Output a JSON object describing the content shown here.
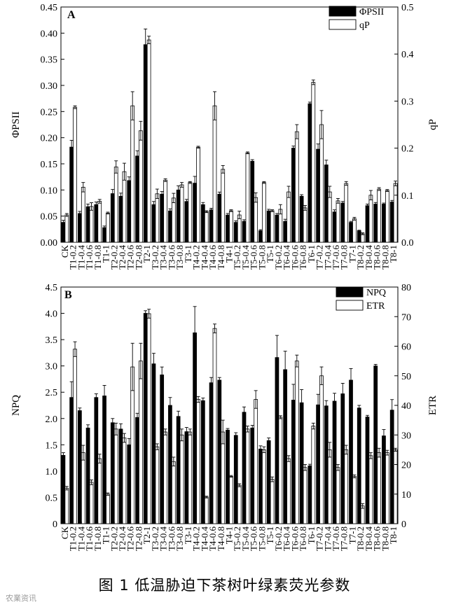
{
  "caption": "图 1   低温胁迫下茶树叶绿素荧光参数",
  "watermark": "农業资讯",
  "chart_data": [
    {
      "type": "bar",
      "panel": "A",
      "categories": [
        "CK",
        "T1-0.2",
        "T1-0.4",
        "T1-0.6",
        "T1-0.8",
        "T1-1",
        "T2-0.2",
        "T2-0.4",
        "T2-0.6",
        "T2-0.8",
        "T2-1",
        "T3-0.2",
        "T3-0.4",
        "T3-0.6",
        "T3-0.8",
        "T3-1",
        "T4-0.2",
        "T4-0.4",
        "T4-0.6",
        "T4-0.8",
        "T4-1",
        "T5-0.2",
        "T5-0.4",
        "T5-0.6",
        "T5-0.8",
        "T5-1",
        "T6-0.2",
        "T6-0.4",
        "T6-0.6",
        "T6-0.8",
        "T6-1",
        "T7-0.2",
        "T7-0.4",
        "T7-0.6",
        "T7-0.8",
        "T7-1",
        "T8-0.2",
        "T8-0.4",
        "T8-0.6",
        "T8-0.8",
        "T8-1"
      ],
      "y_left": {
        "label": "ΦPSII",
        "lim": [
          0,
          0.45
        ],
        "ticks": [
          "0.00",
          "0.05",
          "0.10",
          "0.15",
          "0.20",
          "0.25",
          "0.30",
          "0.35",
          "0.40",
          "0.45"
        ]
      },
      "y_right": {
        "label": "qP",
        "lim": [
          0,
          0.5
        ],
        "ticks": [
          "0.0",
          "0.1",
          "0.2",
          "0.3",
          "0.4",
          "0.5"
        ]
      },
      "legend": [
        "ΦPSII",
        "qP"
      ],
      "legend_position": "top-right",
      "series": [
        {
          "name": "ΦPSII",
          "axis": "left",
          "fill": "#000000",
          "values": [
            0.038,
            0.182,
            0.055,
            0.068,
            0.072,
            0.028,
            0.093,
            0.088,
            0.118,
            0.165,
            0.378,
            0.072,
            0.092,
            0.06,
            0.1,
            0.078,
            0.113,
            0.072,
            0.062,
            0.092,
            0.052,
            0.038,
            0.04,
            0.155,
            0.022,
            0.06,
            0.052,
            0.04,
            0.18,
            0.088,
            0.265,
            0.178,
            0.148,
            0.058,
            0.075,
            0.038,
            0.022,
            0.07,
            0.073,
            0.073,
            0.077
          ],
          "errors": [
            0.004,
            0.013,
            0.004,
            0.005,
            0.005,
            0.003,
            0.008,
            0.006,
            0.007,
            0.01,
            0.03,
            0.006,
            0.005,
            0.004,
            0.008,
            0.004,
            0.013,
            0.004,
            0.003,
            0.004,
            0.003,
            0.003,
            0.003,
            0.003,
            0.002,
            0.003,
            0.003,
            0.004,
            0.004,
            0.003,
            0.003,
            0.01,
            0.009,
            0.004,
            0.003,
            0.002,
            0.001,
            0.003,
            0.003,
            0.002,
            0.003
          ]
        },
        {
          "name": "qP",
          "axis": "right",
          "fill": "#ffffff",
          "values": [
            0.058,
            0.287,
            0.117,
            0.076,
            0.087,
            0.062,
            0.16,
            0.15,
            0.29,
            0.237,
            0.43,
            0.103,
            0.132,
            0.094,
            0.122,
            0.127,
            0.202,
            0.065,
            0.29,
            0.155,
            0.067,
            0.058,
            0.19,
            0.095,
            0.127,
            0.067,
            0.07,
            0.107,
            0.235,
            0.073,
            0.34,
            0.25,
            0.107,
            0.088,
            0.125,
            0.05,
            0.018,
            0.1,
            0.113,
            0.11,
            0.125
          ],
          "errors": [
            0.003,
            0.003,
            0.01,
            0.008,
            0.004,
            0.002,
            0.013,
            0.018,
            0.03,
            0.02,
            0.008,
            0.01,
            0.003,
            0.01,
            0.005,
            0.002,
            0.002,
            0.002,
            0.03,
            0.008,
            0.002,
            0.008,
            0.002,
            0.01,
            0.002,
            0.002,
            0.01,
            0.012,
            0.015,
            0.005,
            0.005,
            0.03,
            0.012,
            0.005,
            0.004,
            0.003,
            0.002,
            0.01,
            0.003,
            0.002,
            0.005
          ]
        }
      ]
    },
    {
      "type": "bar",
      "panel": "B",
      "categories": [
        "CK",
        "T1-0.2",
        "T1-0.4",
        "T1-0.6",
        "T1-0.8",
        "T1-1",
        "T2-0.2",
        "T2-0.4",
        "T2-0.6",
        "T2-0.8",
        "T2-1",
        "T3-0.2",
        "T3-0.4",
        "T3-0.6",
        "T3-0.8",
        "T3-1",
        "T4-0.2",
        "T4-0.4",
        "T4-0.6",
        "T4-0.8",
        "T4-1",
        "T5-0.2",
        "T5-0.4",
        "T5-0.6",
        "T5-0.8",
        "T5-1",
        "T6-0.2",
        "T6-0.4",
        "T6-0.6",
        "T6-0.8",
        "T6-1",
        "T7-0.2",
        "T7-0.4",
        "T7-0.6",
        "T7-0.8",
        "T7-1",
        "T8-0.2",
        "T8-0.4",
        "T8-0.6",
        "T8-0.8",
        "T8-1"
      ],
      "y_left": {
        "label": "NPQ",
        "lim": [
          0,
          4.5
        ],
        "ticks": [
          "0",
          "0.5",
          "1.0",
          "1.5",
          "2.0",
          "2.5",
          "3.0",
          "3.5",
          "4.0",
          "4.5"
        ]
      },
      "y_right": {
        "label": "ETR",
        "lim": [
          0,
          80
        ],
        "ticks": [
          "0",
          "10",
          "20",
          "30",
          "40",
          "50",
          "60",
          "70",
          "80"
        ]
      },
      "legend": [
        "NPQ",
        "ETR"
      ],
      "legend_position": "top-right",
      "series": [
        {
          "name": "NPQ",
          "axis": "left",
          "fill": "#000000",
          "values": [
            1.3,
            2.4,
            2.15,
            1.82,
            2.4,
            2.43,
            1.92,
            1.8,
            1.5,
            2.02,
            4.0,
            3.04,
            2.83,
            2.25,
            2.04,
            1.75,
            3.63,
            2.34,
            2.68,
            2.73,
            1.78,
            1.68,
            2.12,
            1.82,
            1.42,
            1.58,
            3.16,
            2.93,
            2.35,
            2.3,
            1.1,
            2.26,
            2.24,
            2.33,
            2.47,
            2.73,
            2.2,
            2.03,
            3.0,
            1.67,
            2.16
          ],
          "errors": [
            0.05,
            0.3,
            0.05,
            0.06,
            0.07,
            0.2,
            0.08,
            0.1,
            0.12,
            0.08,
            0.05,
            0.2,
            0.15,
            0.15,
            0.1,
            0.08,
            0.5,
            0.05,
            0.1,
            0.05,
            0.03,
            0.05,
            0.1,
            0.05,
            0.06,
            0.05,
            0.42,
            0.35,
            0.3,
            0.25,
            0.03,
            0.2,
            0.1,
            0.15,
            0.2,
            0.22,
            0.05,
            0.03,
            0.03,
            0.12,
            0.2
          ]
        },
        {
          "name": "ETR",
          "axis": "right",
          "fill": "#ffffff",
          "values": [
            12,
            59,
            24,
            14,
            22,
            10,
            32,
            29,
            53,
            55,
            71,
            26,
            31,
            21,
            30,
            31,
            42,
            9,
            66,
            31,
            16,
            13,
            32,
            42,
            25,
            15,
            36,
            22,
            55,
            19,
            33,
            50,
            25,
            19,
            25,
            16,
            6,
            23,
            24,
            24,
            25
          ],
          "errors": [
            0.6,
            2.5,
            2.5,
            0.8,
            1.5,
            0.4,
            2.0,
            1.5,
            8.0,
            6.0,
            1.5,
            1.0,
            1.0,
            1.5,
            2.0,
            1.0,
            1.0,
            0.3,
            1.5,
            4.0,
            0.3,
            0.5,
            1.0,
            3.0,
            1.0,
            0.8,
            0.5,
            1.0,
            2.0,
            1.0,
            1.0,
            3.0,
            2.5,
            1.0,
            1.5,
            0.5,
            0.8,
            1.0,
            1.5,
            0.8,
            0.5
          ]
        }
      ]
    }
  ]
}
